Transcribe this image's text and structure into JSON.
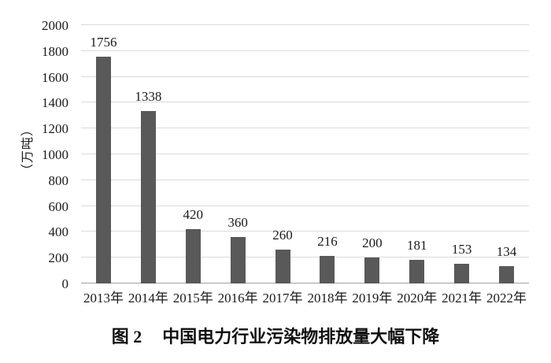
{
  "figure": {
    "caption_prefix": "图 2",
    "caption_title": "中国电力行业污染物排放量大幅下降"
  },
  "chart_data": {
    "type": "bar",
    "title": "图 2　中国电力行业污染物排放量大幅下降",
    "xlabel": "",
    "ylabel": "（万吨）",
    "categories": [
      "2013年",
      "2014年",
      "2015年",
      "2016年",
      "2017年",
      "2018年",
      "2019年",
      "2020年",
      "2021年",
      "2022年"
    ],
    "values": [
      1756,
      1338,
      420,
      360,
      260,
      216,
      200,
      181,
      153,
      134
    ],
    "ylim": [
      0,
      2000
    ],
    "ytick_interval": 200,
    "grid": true,
    "legend": false,
    "bar_color": "#595959",
    "gridline_color": "#dadada",
    "axis_line_color": "#a0a0a0",
    "text_color": "#1a1a1a"
  }
}
